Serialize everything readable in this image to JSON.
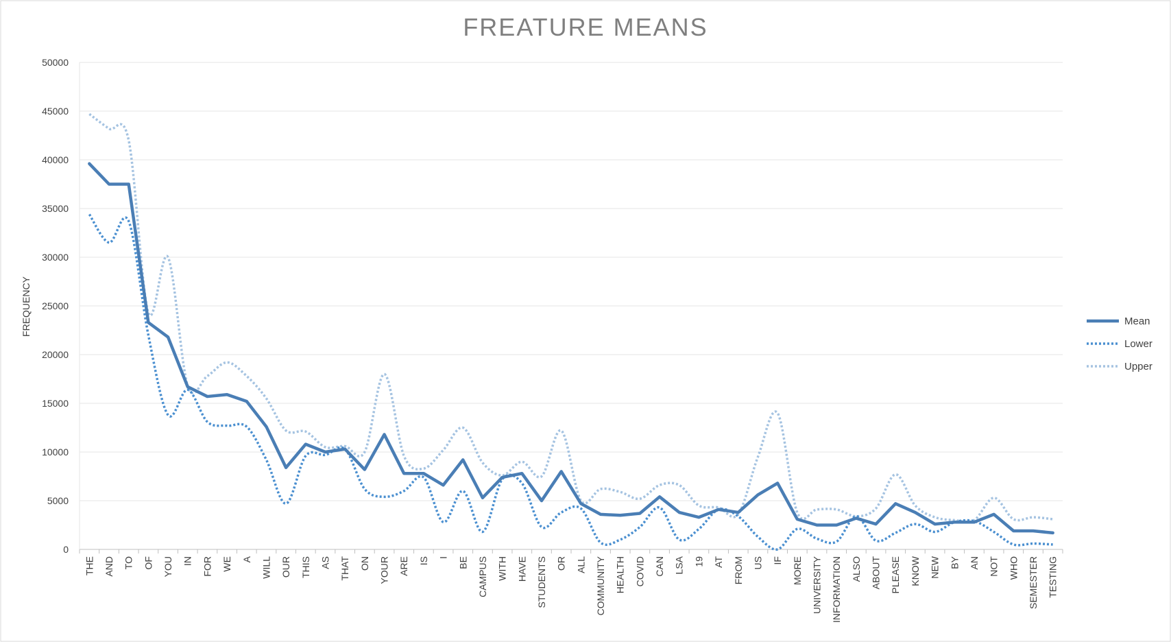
{
  "chart_data": {
    "type": "line",
    "title": "FREATURE MEANS",
    "xlabel": "",
    "ylabel": "FREQUENCY",
    "ylim": [
      0,
      50000
    ],
    "yticks": [
      0,
      5000,
      10000,
      15000,
      20000,
      25000,
      30000,
      35000,
      40000,
      45000,
      50000
    ],
    "grid": true,
    "legend_position": "right",
    "categories": [
      "THE",
      "AND",
      "TO",
      "OF",
      "YOU",
      "IN",
      "FOR",
      "WE",
      "A",
      "WILL",
      "OUR",
      "THIS",
      "AS",
      "THAT",
      "ON",
      "YOUR",
      "ARE",
      "IS",
      "I",
      "BE",
      "CAMPUS",
      "WITH",
      "HAVE",
      "STUDENTS",
      "OR",
      "ALL",
      "COMMUNITY",
      "HEALTH",
      "COVID",
      "CAN",
      "LSA",
      "19",
      "AT",
      "FROM",
      "US",
      "IF",
      "MORE",
      "UNIVERSITY",
      "INFORMATION",
      "ALSO",
      "ABOUT",
      "PLEASE",
      "KNOW",
      "NEW",
      "BY",
      "AN",
      "NOT",
      "WHO",
      "SEMESTER",
      "TESTING"
    ],
    "series": [
      {
        "name": "Mean",
        "color": "#4a7eb5",
        "style": "solid",
        "smooth": false,
        "values": [
          39600,
          37500,
          37500,
          23300,
          21800,
          16700,
          15700,
          15900,
          15200,
          12600,
          8400,
          10800,
          10000,
          10300,
          8200,
          11800,
          7800,
          7800,
          6600,
          9200,
          5300,
          7400,
          7800,
          5000,
          8000,
          4700,
          3600,
          3500,
          3700,
          5400,
          3800,
          3300,
          4100,
          3800,
          5600,
          6800,
          3100,
          2500,
          2500,
          3200,
          2600,
          4700,
          3800,
          2600,
          2800,
          2800,
          3600,
          1900,
          1900,
          1700
        ]
      },
      {
        "name": "Lower",
        "color": "#4a8fd0",
        "style": "dotted",
        "smooth": true,
        "values": [
          34400,
          31500,
          33700,
          22000,
          13800,
          16400,
          13100,
          12700,
          12600,
          9200,
          4700,
          9600,
          9700,
          10300,
          6200,
          5400,
          6000,
          7400,
          2800,
          6000,
          1800,
          7200,
          6800,
          2300,
          3800,
          4200,
          700,
          1000,
          2300,
          4300,
          1000,
          2100,
          4100,
          3400,
          1300,
          0,
          2100,
          1100,
          800,
          3400,
          900,
          1700,
          2600,
          1800,
          2800,
          2900,
          1800,
          500,
          600,
          500
        ]
      },
      {
        "name": "Upper",
        "color": "#a5c3e1",
        "style": "dotted",
        "smooth": true,
        "values": [
          44700,
          43200,
          42000,
          24300,
          30000,
          16800,
          17800,
          19200,
          17800,
          15500,
          12200,
          12100,
          10500,
          10600,
          10000,
          18000,
          9600,
          8300,
          10200,
          12500,
          8900,
          7600,
          9000,
          7500,
          12200,
          5000,
          6200,
          5900,
          5200,
          6600,
          6600,
          4500,
          4300,
          3600,
          9500,
          14000,
          3800,
          4100,
          4100,
          3400,
          4200,
          7700,
          4500,
          3300,
          3000,
          3000,
          5300,
          3100,
          3300,
          3100
        ]
      }
    ]
  }
}
